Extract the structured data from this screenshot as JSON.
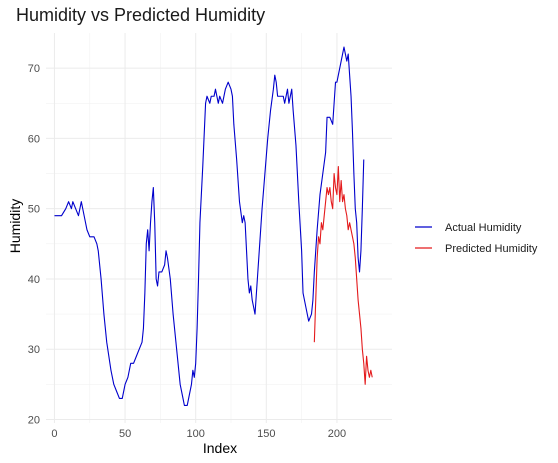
{
  "chart_data": {
    "type": "line",
    "title": "Humidity vs Predicted Humidity",
    "xlabel": "Index",
    "ylabel": "Humidity",
    "xlim": [
      -6,
      239
    ],
    "ylim": [
      19.5,
      75
    ],
    "x_ticks": [
      0,
      50,
      100,
      150,
      200
    ],
    "y_ticks": [
      20,
      30,
      40,
      50,
      60,
      70
    ],
    "grid": true,
    "legend_position": "right",
    "series": [
      {
        "name": "Actual Humidity",
        "color": "#0000cc",
        "points": [
          [
            0,
            49
          ],
          [
            5,
            49
          ],
          [
            8,
            50
          ],
          [
            10,
            51
          ],
          [
            12,
            50
          ],
          [
            13,
            51
          ],
          [
            15,
            50
          ],
          [
            17,
            49
          ],
          [
            19,
            51
          ],
          [
            21,
            49
          ],
          [
            23,
            47
          ],
          [
            25,
            46
          ],
          [
            28,
            46
          ],
          [
            30,
            45
          ],
          [
            31,
            44
          ],
          [
            33,
            40
          ],
          [
            35,
            35
          ],
          [
            37,
            31
          ],
          [
            40,
            27
          ],
          [
            42,
            25
          ],
          [
            44,
            24
          ],
          [
            46,
            23
          ],
          [
            48,
            23
          ],
          [
            50,
            25
          ],
          [
            52,
            26
          ],
          [
            54,
            28
          ],
          [
            56,
            28
          ],
          [
            58,
            29
          ],
          [
            60,
            30
          ],
          [
            62,
            31
          ],
          [
            63,
            33
          ],
          [
            64,
            38
          ],
          [
            65,
            45
          ],
          [
            66,
            47
          ],
          [
            67,
            44
          ],
          [
            68,
            48
          ],
          [
            69,
            51
          ],
          [
            70,
            53
          ],
          [
            71,
            48
          ],
          [
            72,
            40
          ],
          [
            73,
            39
          ],
          [
            74,
            41
          ],
          [
            76,
            41
          ],
          [
            78,
            42
          ],
          [
            79,
            44
          ],
          [
            80,
            43
          ],
          [
            82,
            40
          ],
          [
            84,
            35
          ],
          [
            86,
            31
          ],
          [
            88,
            27
          ],
          [
            89,
            25
          ],
          [
            91,
            23
          ],
          [
            92,
            22
          ],
          [
            94,
            22
          ],
          [
            95,
            23
          ],
          [
            97,
            25
          ],
          [
            98,
            27
          ],
          [
            99,
            26
          ],
          [
            100,
            28
          ],
          [
            101,
            33
          ],
          [
            102,
            40
          ],
          [
            103,
            48
          ],
          [
            105,
            56
          ],
          [
            107,
            65
          ],
          [
            108,
            66
          ],
          [
            110,
            65
          ],
          [
            111,
            66
          ],
          [
            113,
            66
          ],
          [
            114,
            67
          ],
          [
            115,
            66
          ],
          [
            116,
            65
          ],
          [
            117,
            66
          ],
          [
            119,
            65
          ],
          [
            121,
            67
          ],
          [
            123,
            68
          ],
          [
            125,
            67
          ],
          [
            126,
            66
          ],
          [
            127,
            62
          ],
          [
            129,
            57
          ],
          [
            131,
            51
          ],
          [
            133,
            48
          ],
          [
            134,
            49
          ],
          [
            135,
            48
          ],
          [
            136,
            44
          ],
          [
            137,
            40
          ],
          [
            138,
            38
          ],
          [
            139,
            39
          ],
          [
            140,
            37
          ],
          [
            141,
            36
          ],
          [
            142,
            35
          ],
          [
            143,
            38
          ],
          [
            145,
            44
          ],
          [
            147,
            50
          ],
          [
            149,
            55
          ],
          [
            151,
            60
          ],
          [
            153,
            64
          ],
          [
            155,
            67
          ],
          [
            156,
            69
          ],
          [
            157,
            68
          ],
          [
            158,
            66
          ],
          [
            160,
            66
          ],
          [
            162,
            66
          ],
          [
            163,
            65
          ],
          [
            164,
            66
          ],
          [
            165,
            67
          ],
          [
            166,
            65
          ],
          [
            167,
            66
          ],
          [
            168,
            67
          ],
          [
            169,
            64
          ],
          [
            171,
            59
          ],
          [
            173,
            51
          ],
          [
            175,
            44
          ],
          [
            176,
            38
          ],
          [
            178,
            36
          ],
          [
            180,
            34
          ],
          [
            182,
            35
          ],
          [
            183,
            37
          ],
          [
            184,
            41
          ],
          [
            186,
            47
          ],
          [
            188,
            52
          ],
          [
            190,
            55
          ],
          [
            192,
            58
          ],
          [
            193,
            63
          ],
          [
            195,
            63
          ],
          [
            197,
            62
          ],
          [
            198,
            65
          ],
          [
            199,
            68
          ],
          [
            200,
            68
          ],
          [
            201,
            69
          ],
          [
            203,
            71
          ],
          [
            204,
            72
          ],
          [
            205,
            73
          ],
          [
            206,
            72
          ],
          [
            207,
            71
          ],
          [
            208,
            72
          ],
          [
            209,
            69
          ],
          [
            210,
            66
          ],
          [
            211,
            61
          ],
          [
            212,
            55
          ],
          [
            213,
            50
          ],
          [
            214,
            48
          ],
          [
            215,
            43
          ],
          [
            216,
            41
          ],
          [
            217,
            44
          ],
          [
            218,
            50
          ],
          [
            219,
            57
          ]
        ]
      },
      {
        "name": "Predicted Humidity",
        "color": "#e41a1c",
        "points": [
          [
            184,
            31
          ],
          [
            185,
            37
          ],
          [
            186,
            43
          ],
          [
            187,
            46
          ],
          [
            188,
            45
          ],
          [
            189,
            48
          ],
          [
            190,
            47
          ],
          [
            191,
            49
          ],
          [
            192,
            51
          ],
          [
            193,
            53
          ],
          [
            194,
            52
          ],
          [
            195,
            53
          ],
          [
            196,
            51
          ],
          [
            197,
            50
          ],
          [
            198,
            55
          ],
          [
            199,
            53
          ],
          [
            200,
            52
          ],
          [
            201,
            56
          ],
          [
            202,
            51
          ],
          [
            203,
            54
          ],
          [
            204,
            51
          ],
          [
            205,
            52
          ],
          [
            206,
            50
          ],
          [
            207,
            49
          ],
          [
            208,
            47
          ],
          [
            209,
            48
          ],
          [
            210,
            47
          ],
          [
            211,
            46
          ],
          [
            212,
            45
          ],
          [
            213,
            43
          ],
          [
            214,
            40
          ],
          [
            215,
            37
          ],
          [
            216,
            35
          ],
          [
            217,
            33
          ],
          [
            218,
            30
          ],
          [
            219,
            28
          ],
          [
            220,
            25
          ],
          [
            221,
            29
          ],
          [
            222,
            27
          ],
          [
            223,
            26
          ],
          [
            224,
            27
          ],
          [
            225,
            26
          ]
        ]
      }
    ]
  }
}
